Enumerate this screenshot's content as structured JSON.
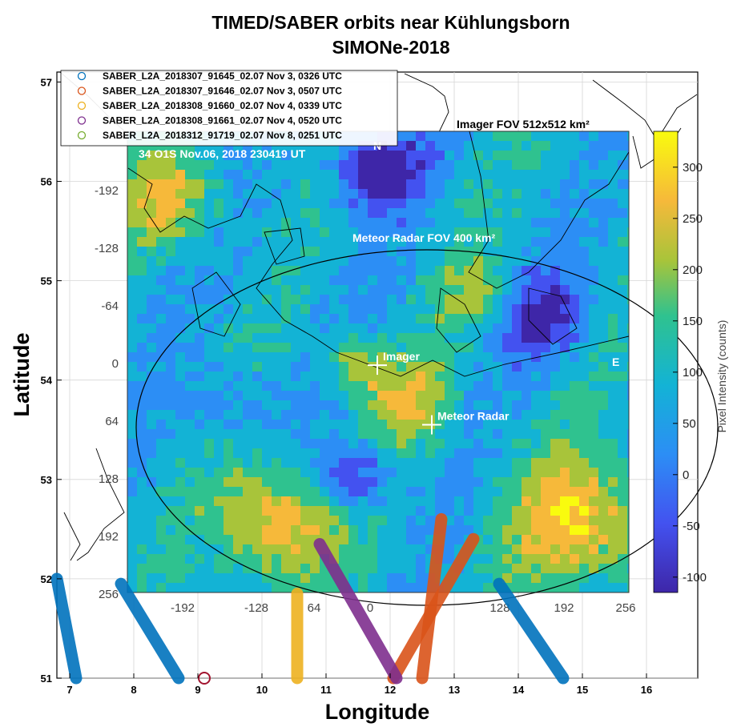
{
  "chart_data": {
    "type": "map-overlay",
    "title": "TIMED/SABER orbits near Kühlungsborn",
    "subtitle": "SIMONe-2018",
    "xlabel": "Longitude",
    "ylabel": "Latitude",
    "xlim": [
      6.8,
      16.8
    ],
    "ylim": [
      51,
      57.1
    ],
    "x_ticks": [
      "7",
      "8",
      "9",
      "10",
      "11",
      "12",
      "13",
      "14",
      "15",
      "16"
    ],
    "y_ticks": [
      "51",
      "52",
      "53",
      "54",
      "55",
      "56",
      "57"
    ],
    "grid": true,
    "legend_position": "top-left",
    "series": [
      {
        "name": "SABER_L2A_2018307_91645_02.07 Nov 3, 0326 UTC",
        "color": "#0072BD",
        "segments": [
          [
            [
              6.8,
              52.0
            ],
            [
              7.1,
              51.0
            ]
          ],
          [
            [
              7.8,
              51.95
            ],
            [
              8.7,
              51.0
            ]
          ],
          [
            [
              13.7,
              51.95
            ],
            [
              14.7,
              51.0
            ]
          ]
        ]
      },
      {
        "name": "SABER_L2A_2018307_91646_02.07 Nov 3, 0507 UTC",
        "color": "#D95319",
        "segments": [
          [
            [
              12.8,
              52.6
            ],
            [
              12.5,
              51.0
            ]
          ],
          [
            [
              13.3,
              52.4
            ],
            [
              12.05,
              51.0
            ]
          ]
        ]
      },
      {
        "name": "SABER_L2A_2018308_91660_02.07 Nov 4, 0339 UTC",
        "color": "#EDB120",
        "segments": [
          [
            [
              10.55,
              51.85
            ],
            [
              10.55,
              51.0
            ]
          ]
        ]
      },
      {
        "name": "SABER_L2A_2018308_91661_02.07 Nov 4, 0520 UTC",
        "color": "#7E2F8E",
        "segments": [
          [
            [
              10.9,
              52.35
            ],
            [
              12.1,
              51.0
            ]
          ]
        ]
      },
      {
        "name": "SABER_L2A_2018312_91719_02.07 Nov 8, 0251 UTC",
        "color": "#77AC30",
        "segments": []
      }
    ],
    "marker": {
      "x": 9.1,
      "y": 51.0,
      "color": "#A2142F"
    },
    "image_overlay": {
      "title": "Imager FOV  512x512 km²",
      "caption": "34 O1S Nov.06, 2018 230419 UT",
      "x_ticks": [
        "-192",
        "-128",
        "64",
        "0",
        "128",
        "192",
        "256"
      ],
      "y_ticks": [
        "-192",
        "-128",
        "-64",
        "0",
        "64",
        "128",
        "192",
        "256"
      ],
      "north_label": "N",
      "east_label": "E",
      "radar_fov_label": "Meteor Radar FOV 400 km²",
      "imager_label": "Imager",
      "radar_label": "Meteor Radar",
      "imager_position": [
        11.8,
        54.15
      ],
      "radar_position": [
        12.65,
        53.55
      ]
    },
    "colorbar": {
      "label": "Pixel Intensity (counts)",
      "range": [
        -115,
        335
      ],
      "ticks": [
        "300",
        "250",
        "200",
        "150",
        "100",
        "50",
        "0",
        "-50",
        "-100"
      ],
      "colormap": "parula"
    }
  }
}
